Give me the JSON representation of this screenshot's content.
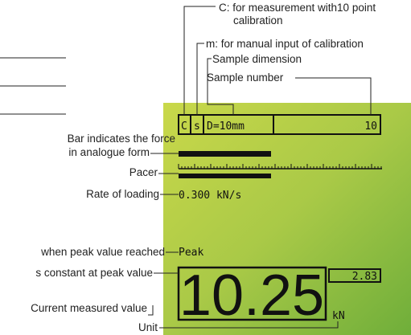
{
  "annotations": {
    "calibration_c": [
      "C: for measurement with10 point",
      "calibration"
    ],
    "calibration_m": "m: for manual input of calibration",
    "sample_dimension": "Sample dimension",
    "sample_number": "Sample number",
    "bar": [
      "Bar indicates the force",
      "in analogue form"
    ],
    "pacer": "Pacer",
    "rate": "Rate of loading",
    "peak": "when peak value reached",
    "constant": "s constant at peak value",
    "current": "Current measured value",
    "unit": "Unit"
  },
  "display": {
    "calibration": "C",
    "mode": "s",
    "dimension": "D=10mm",
    "sample_number": "10",
    "rate": "0.300 kN/s",
    "peak": "Peak",
    "value": "10.25",
    "peak_value": "2.83",
    "unit": "kN"
  }
}
